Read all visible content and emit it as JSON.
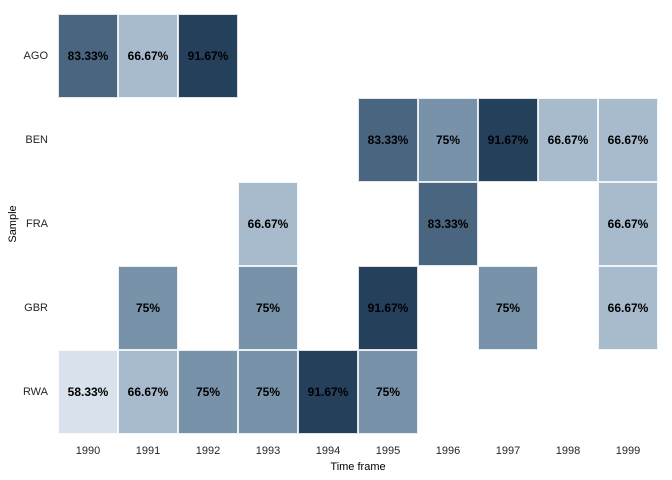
{
  "chart_data": {
    "type": "heatmap",
    "title": "",
    "xlabel": "Time frame",
    "ylabel": "Sample",
    "x": [
      "1990",
      "1991",
      "1992",
      "1993",
      "1994",
      "1995",
      "1996",
      "1997",
      "1998",
      "1999"
    ],
    "y": [
      "AGO",
      "BEN",
      "FRA",
      "GBR",
      "RWA"
    ],
    "cells": [
      {
        "row": "AGO",
        "col": "1990",
        "value": 83.33,
        "label": "83.33%"
      },
      {
        "row": "AGO",
        "col": "1991",
        "value": 66.67,
        "label": "66.67%"
      },
      {
        "row": "AGO",
        "col": "1992",
        "value": 91.67,
        "label": "91.67%"
      },
      {
        "row": "BEN",
        "col": "1995",
        "value": 83.33,
        "label": "83.33%"
      },
      {
        "row": "BEN",
        "col": "1996",
        "value": 75,
        "label": "75%"
      },
      {
        "row": "BEN",
        "col": "1997",
        "value": 91.67,
        "label": "91.67%"
      },
      {
        "row": "BEN",
        "col": "1998",
        "value": 66.67,
        "label": "66.67%"
      },
      {
        "row": "BEN",
        "col": "1999",
        "value": 66.67,
        "label": "66.67%"
      },
      {
        "row": "FRA",
        "col": "1993",
        "value": 66.67,
        "label": "66.67%"
      },
      {
        "row": "FRA",
        "col": "1996",
        "value": 83.33,
        "label": "83.33%"
      },
      {
        "row": "FRA",
        "col": "1999",
        "value": 66.67,
        "label": "66.67%"
      },
      {
        "row": "GBR",
        "col": "1991",
        "value": 75,
        "label": "75%"
      },
      {
        "row": "GBR",
        "col": "1993",
        "value": 75,
        "label": "75%"
      },
      {
        "row": "GBR",
        "col": "1995",
        "value": 91.67,
        "label": "91.67%"
      },
      {
        "row": "GBR",
        "col": "1997",
        "value": 75,
        "label": "75%"
      },
      {
        "row": "GBR",
        "col": "1999",
        "value": 66.67,
        "label": "66.67%"
      },
      {
        "row": "RWA",
        "col": "1990",
        "value": 58.33,
        "label": "58.33%"
      },
      {
        "row": "RWA",
        "col": "1991",
        "value": 66.67,
        "label": "66.67%"
      },
      {
        "row": "RWA",
        "col": "1992",
        "value": 75,
        "label": "75%"
      },
      {
        "row": "RWA",
        "col": "1993",
        "value": 75,
        "label": "75%"
      },
      {
        "row": "RWA",
        "col": "1994",
        "value": 91.67,
        "label": "91.67%"
      },
      {
        "row": "RWA",
        "col": "1995",
        "value": 75,
        "label": "75%"
      }
    ],
    "value_colors": {
      "58.33": "#d8e2ed",
      "66.67": "#a7bbcd",
      "75": "#7892a9",
      "83.33": "#4a6580",
      "91.67": "#24405b"
    },
    "layout": {
      "grid": false,
      "legend": "none",
      "background": "#ffffff",
      "cell_border": "rgba(255,255,255,0.85)"
    }
  }
}
